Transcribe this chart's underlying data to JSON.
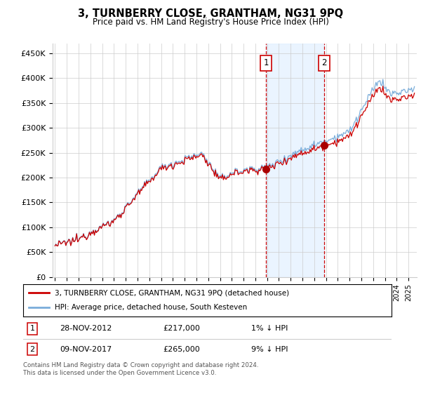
{
  "title": "3, TURNBERRY CLOSE, GRANTHAM, NG31 9PQ",
  "subtitle": "Price paid vs. HM Land Registry's House Price Index (HPI)",
  "ylim": [
    0,
    470000
  ],
  "yticks": [
    0,
    50000,
    100000,
    150000,
    200000,
    250000,
    300000,
    350000,
    400000,
    450000
  ],
  "ytick_labels": [
    "£0",
    "£50K",
    "£100K",
    "£150K",
    "£200K",
    "£250K",
    "£300K",
    "£350K",
    "£400K",
    "£450K"
  ],
  "sale1": {
    "date_label": "28-NOV-2012",
    "price": 217000,
    "hpi_diff": "1% ↓ HPI",
    "x_year": 2012.9
  },
  "sale2": {
    "date_label": "09-NOV-2017",
    "price": 265000,
    "hpi_diff": "9% ↓ HPI",
    "x_year": 2017.85
  },
  "legend_line1": "3, TURNBERRY CLOSE, GRANTHAM, NG31 9PQ (detached house)",
  "legend_line2": "HPI: Average price, detached house, South Kesteven",
  "footer": "Contains HM Land Registry data © Crown copyright and database right 2024.\nThis data is licensed under the Open Government Licence v3.0.",
  "line_color_red": "#cc0000",
  "line_color_blue": "#7aadda",
  "sale_marker_color": "#aa0000",
  "vline_color": "#cc0000",
  "shade_color": "#ddeeff",
  "grid_color": "#cccccc",
  "background_color": "#ffffff",
  "xlim_start": 1994.8,
  "xlim_end": 2025.7
}
